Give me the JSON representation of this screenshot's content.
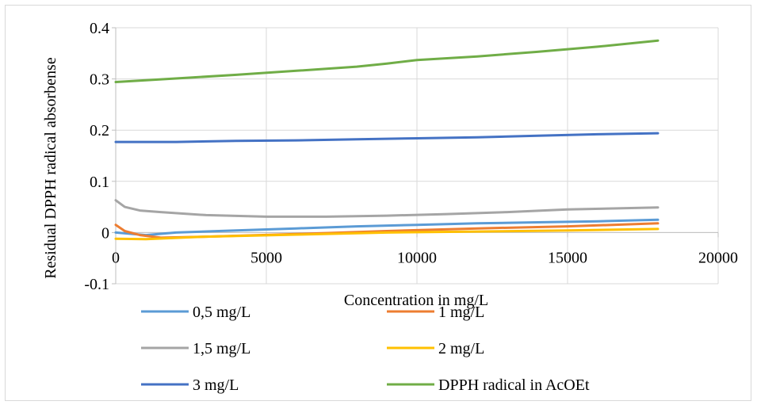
{
  "chart_data": {
    "type": "line",
    "title": "",
    "xlabel": "Concentration in mg/L",
    "ylabel": "Residual DPPH radical absorbense",
    "xlim": [
      0,
      20000
    ],
    "ylim": [
      -0.1,
      0.4
    ],
    "xticks": [
      0,
      5000,
      10000,
      15000,
      20000
    ],
    "yticks": [
      -0.1,
      0,
      0.1,
      0.2,
      0.3,
      0.4
    ],
    "xtick_labels": [
      "0",
      "5000",
      "10000",
      "15000",
      "20000"
    ],
    "ytick_labels": [
      "-0.1",
      "0",
      "0.1",
      "0.2",
      "0.3",
      "0.4"
    ],
    "grid": true,
    "legend_position": "bottom",
    "series": [
      {
        "name": "0,5 mg/L",
        "color": "#5b9bd5",
        "points": [
          [
            0,
            0.0
          ],
          [
            1000,
            -0.005
          ],
          [
            2000,
            0.0
          ],
          [
            4000,
            0.004
          ],
          [
            6000,
            0.008
          ],
          [
            8000,
            0.012
          ],
          [
            10000,
            0.015
          ],
          [
            12000,
            0.018
          ],
          [
            14000,
            0.02
          ],
          [
            16000,
            0.022
          ],
          [
            18000,
            0.025
          ]
        ]
      },
      {
        "name": "1 mg/L",
        "color": "#ed7d31",
        "points": [
          [
            0,
            0.015
          ],
          [
            300,
            0.003
          ],
          [
            800,
            -0.005
          ],
          [
            1500,
            -0.01
          ],
          [
            3000,
            -0.008
          ],
          [
            6000,
            -0.003
          ],
          [
            9000,
            0.003
          ],
          [
            12000,
            0.008
          ],
          [
            15000,
            0.012
          ],
          [
            18000,
            0.018
          ]
        ]
      },
      {
        "name": "1,5 mg/L",
        "color": "#a5a5a5",
        "points": [
          [
            0,
            0.063
          ],
          [
            300,
            0.05
          ],
          [
            800,
            0.043
          ],
          [
            1500,
            0.04
          ],
          [
            3000,
            0.034
          ],
          [
            5000,
            0.031
          ],
          [
            7000,
            0.031
          ],
          [
            9000,
            0.033
          ],
          [
            11000,
            0.036
          ],
          [
            13000,
            0.04
          ],
          [
            15000,
            0.045
          ],
          [
            18000,
            0.049
          ]
        ]
      },
      {
        "name": "2 mg/L",
        "color": "#ffc000",
        "points": [
          [
            0,
            -0.012
          ],
          [
            1000,
            -0.013
          ],
          [
            3000,
            -0.008
          ],
          [
            6000,
            -0.004
          ],
          [
            9000,
            0.0
          ],
          [
            12000,
            0.002
          ],
          [
            15000,
            0.004
          ],
          [
            18000,
            0.007
          ]
        ]
      },
      {
        "name": "3 mg/L",
        "color": "#4472c4",
        "points": [
          [
            0,
            0.177
          ],
          [
            2000,
            0.177
          ],
          [
            4000,
            0.179
          ],
          [
            6000,
            0.18
          ],
          [
            8000,
            0.182
          ],
          [
            10000,
            0.184
          ],
          [
            12000,
            0.186
          ],
          [
            14000,
            0.189
          ],
          [
            16000,
            0.192
          ],
          [
            18000,
            0.194
          ]
        ]
      },
      {
        "name": "DPPH radical in AcOEt",
        "color": "#70ad47",
        "points": [
          [
            0,
            0.294
          ],
          [
            2000,
            0.301
          ],
          [
            4000,
            0.308
          ],
          [
            6000,
            0.316
          ],
          [
            8000,
            0.324
          ],
          [
            9000,
            0.33
          ],
          [
            10000,
            0.337
          ],
          [
            12000,
            0.344
          ],
          [
            14000,
            0.353
          ],
          [
            16000,
            0.363
          ],
          [
            18000,
            0.375
          ]
        ]
      }
    ]
  }
}
